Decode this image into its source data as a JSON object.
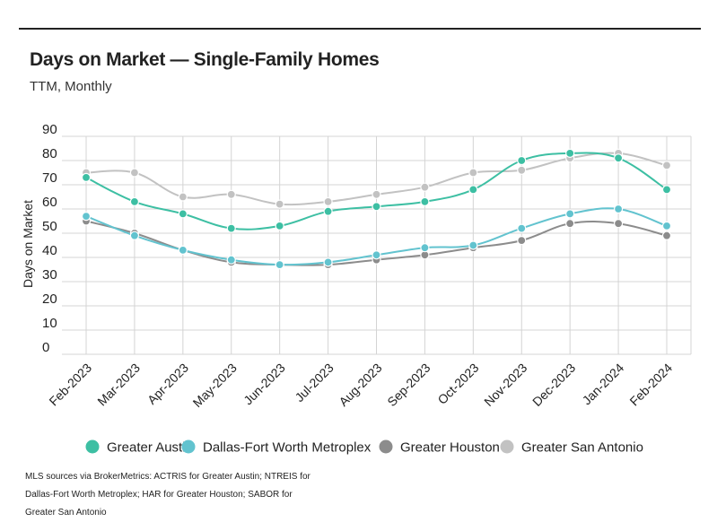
{
  "title": "Days on Market — Single-Family Homes",
  "subtitle": "TTM, Monthly",
  "footnote": "MLS sources via BrokerMetrics: ACTRIS for Greater Austin; NTREIS for Dallas-Fort Worth Metroplex; HAR for Greater Houston; SABOR for Greater San Antonio",
  "chart_data": {
    "type": "line",
    "ylabel": "Days on Market",
    "ylim": [
      0,
      90
    ],
    "yticks": [
      90,
      80,
      70,
      60,
      50,
      40,
      30,
      20,
      10,
      0
    ],
    "grid": true,
    "legend_position": "bottom",
    "categories": [
      "Feb-2023",
      "Mar-2023",
      "Apr-2023",
      "May-2023",
      "Jun-2023",
      "Jul-2023",
      "Aug-2023",
      "Sep-2023",
      "Oct-2023",
      "Nov-2023",
      "Dec-2023",
      "Jan-2024",
      "Feb-2024"
    ],
    "series": [
      {
        "name": "Greater Austin",
        "color": "#3dbfa3",
        "values": [
          73,
          63,
          58,
          52,
          53,
          59,
          61,
          63,
          68,
          80,
          83,
          81,
          68
        ]
      },
      {
        "name": "Dallas-Fort Worth Metroplex",
        "color": "#62c3cf",
        "values": [
          57,
          49,
          43,
          39,
          37,
          38,
          41,
          44,
          45,
          52,
          58,
          60,
          53
        ]
      },
      {
        "name": "Greater Houston",
        "color": "#8c8c8c",
        "values": [
          55,
          50,
          43,
          38,
          37,
          37,
          39,
          41,
          44,
          47,
          54,
          54,
          49
        ]
      },
      {
        "name": "Greater San Antonio",
        "color": "#c2c2c2",
        "values": [
          75,
          75,
          65,
          66,
          62,
          63,
          66,
          69,
          75,
          76,
          81,
          83,
          78
        ]
      }
    ]
  }
}
